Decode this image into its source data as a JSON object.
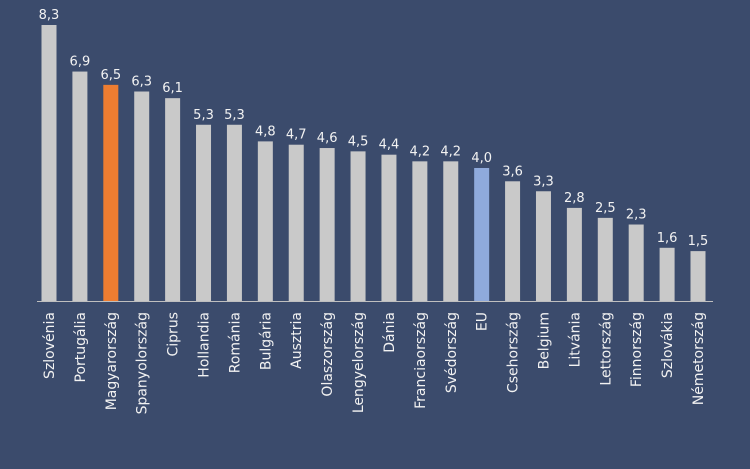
{
  "chart_data": {
    "type": "bar",
    "categories": [
      "Szlovénia",
      "Portugália",
      "Magyarország",
      "Spanyolország",
      "Ciprus",
      "Hollandia",
      "Románia",
      "Bulgária",
      "Ausztria",
      "Olaszország",
      "Lengyelország",
      "Dánia",
      "Franciaország",
      "Svédország",
      "EU",
      "Csehország",
      "Belgium",
      "Litvánia",
      "Lettország",
      "Finnország",
      "Szlovákia",
      "Németország"
    ],
    "values": [
      8.3,
      6.9,
      6.5,
      6.3,
      6.1,
      5.3,
      5.3,
      4.8,
      4.7,
      4.6,
      4.5,
      4.4,
      4.2,
      4.2,
      4.0,
      3.6,
      3.3,
      2.8,
      2.5,
      2.3,
      1.6,
      1.5
    ],
    "value_labels": [
      "8,3",
      "6,9",
      "6,5",
      "6,3",
      "6,1",
      "5,3",
      "5,3",
      "4,8",
      "4,7",
      "4,6",
      "4,5",
      "4,4",
      "4,2",
      "4,2",
      "4,0",
      "3,6",
      "3,3",
      "2,8",
      "2,5",
      "2,3",
      "1,6",
      "1,5"
    ],
    "colors": [
      "#c9c9c9",
      "#c9c9c9",
      "#ee7d31",
      "#c9c9c9",
      "#c9c9c9",
      "#c9c9c9",
      "#c9c9c9",
      "#c9c9c9",
      "#c9c9c9",
      "#c9c9c9",
      "#c9c9c9",
      "#c9c9c9",
      "#c9c9c9",
      "#c9c9c9",
      "#8faadc",
      "#c9c9c9",
      "#c9c9c9",
      "#c9c9c9",
      "#c9c9c9",
      "#c9c9c9",
      "#c9c9c9",
      "#c9c9c9"
    ]
  }
}
